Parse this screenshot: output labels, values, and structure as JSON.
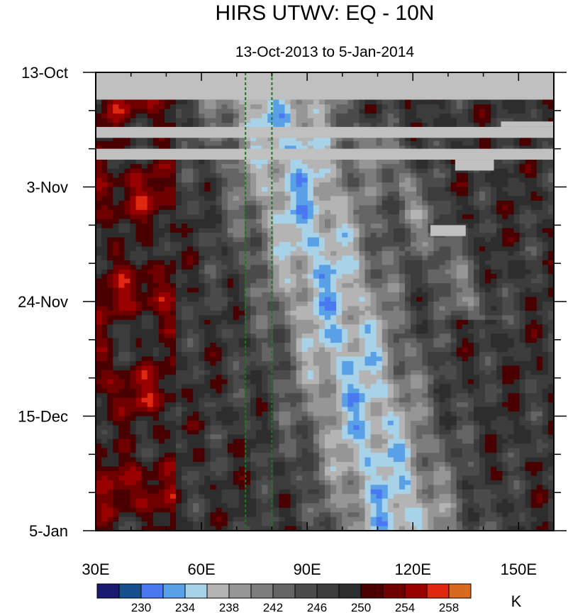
{
  "chart_data": {
    "type": "heatmap",
    "title": "HIRS UTWV: EQ - 10N",
    "subtitle": "13-Oct-2013 to 5-Jan-2014",
    "xlabel": "",
    "ylabel": "",
    "x_ticks": [
      {
        "value": 30,
        "label": "30E"
      },
      {
        "value": 60,
        "label": "60E"
      },
      {
        "value": 90,
        "label": "90E"
      },
      {
        "value": 120,
        "label": "120E"
      },
      {
        "value": 150,
        "label": "150E"
      }
    ],
    "y_ticks": [
      {
        "value": 0,
        "label": "13-Oct"
      },
      {
        "value": 21,
        "label": "3-Nov"
      },
      {
        "value": 42,
        "label": "24-Nov"
      },
      {
        "value": 63,
        "label": "15-Dec"
      },
      {
        "value": 84,
        "label": "5-Jan"
      }
    ],
    "xlim": [
      30,
      160
    ],
    "ylim_days": [
      0,
      84
    ],
    "missing_color": "#c0c0c0",
    "missing_bands_days": [
      [
        0,
        5
      ],
      [
        10,
        12
      ],
      [
        14,
        16
      ]
    ],
    "missing_boxes": [
      {
        "lon": [
          145,
          160
        ],
        "days": [
          9,
          10
        ]
      },
      {
        "lon": [
          132,
          143
        ],
        "days": [
          16,
          18
        ]
      },
      {
        "lon": [
          125,
          135
        ],
        "days": [
          28,
          30
        ]
      }
    ],
    "reference_lines": [
      {
        "lon": 72.5,
        "color": "#1a7a1a",
        "style": "dashed"
      },
      {
        "lon": 80,
        "color": "#1a7a1a",
        "style": "dashed"
      }
    ],
    "colorbar": {
      "unit": "K",
      "colors": [
        "#1a1a6e",
        "#14508c",
        "#4a78f0",
        "#5aa0e6",
        "#a8d2e8",
        "#b4b4b4",
        "#969696",
        "#7d7d7d",
        "#646464",
        "#4b4b4b",
        "#3c3c3c",
        "#2d2d2d",
        "#4a0000",
        "#700000",
        "#9a0000",
        "#e02810",
        "#d86a20"
      ],
      "label_values": [
        "230",
        "234",
        "238",
        "242",
        "246",
        "250",
        "254",
        "258"
      ]
    }
  }
}
